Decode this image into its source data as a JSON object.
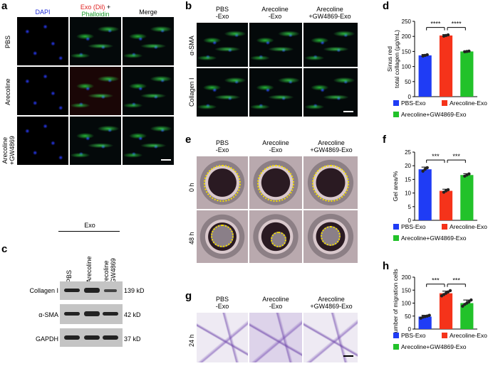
{
  "panels": {
    "a": "a",
    "b": "b",
    "c": "c",
    "d": "d",
    "e": "e",
    "f": "f",
    "g": "g",
    "h": "h"
  },
  "panel_a": {
    "col_dapi": "DAPI",
    "col_exo": "Exo (Dil)",
    "col_plus": " +",
    "col_phalloidin": "Phalloidin",
    "col_merge": "Merge",
    "rows": [
      "PBS",
      "Arecoline",
      "Arecoline\n+GW4869"
    ],
    "colors": {
      "dapi": "#1f2bd9",
      "exo": "#e0201f",
      "phalloidin": "#1b9e2c"
    }
  },
  "panel_b": {
    "cols": [
      "PBS\n-Exo",
      "Arecoline\n-Exo",
      "Arecoline\n+GW4869-Exo"
    ],
    "rows": [
      "α-SMA",
      "Collagen I"
    ]
  },
  "panel_c": {
    "header": "Exo",
    "lanes": [
      "PBS",
      "Arecoline",
      "Arecoline\n+GW4869"
    ],
    "blots": [
      {
        "name": "Collagen I",
        "size": "139 kD"
      },
      {
        "name": "α-SMA",
        "size": "42 kD"
      },
      {
        "name": "GAPDH",
        "size": "37 kD"
      }
    ]
  },
  "panel_e": {
    "cols": [
      "PBS\n-Exo",
      "Arecoline\n-Exo",
      "Arecoline\n+GW4869-Exo"
    ],
    "rows": [
      "0 h",
      "48 h"
    ]
  },
  "panel_g": {
    "cols": [
      "PBS\n-Exo",
      "Arecoline\n-Exo",
      "Arecoline\n+GW4869-Exo"
    ],
    "rows": [
      "24 h"
    ]
  },
  "chart_data": [
    {
      "id": "d",
      "type": "bar",
      "categories": [
        "PBS-Exo",
        "Arecoline-Exo",
        "Arecoline+GW4869-Exo"
      ],
      "values": [
        137,
        203,
        150
      ],
      "errors": [
        3,
        3,
        2
      ],
      "points": [
        [
          135,
          137,
          139
        ],
        [
          201,
          203,
          205
        ],
        [
          149,
          150,
          151
        ]
      ],
      "colors": [
        "#1f3cf5",
        "#f5331a",
        "#22c22a"
      ],
      "ylabel_lines": [
        "Sinus red",
        "total collagen (μg/mL)"
      ],
      "ylim": [
        0,
        250
      ],
      "yticks": [
        0,
        50,
        100,
        150,
        200,
        250
      ],
      "significance": [
        {
          "from": 0,
          "to": 1,
          "label": "****"
        },
        {
          "from": 1,
          "to": 2,
          "label": "****"
        }
      ],
      "legend": [
        "PBS-Exo",
        "Arecoline-Exo",
        "Arecoline+GW4869-Exo"
      ]
    },
    {
      "id": "f",
      "type": "bar",
      "categories": [
        "PBS-Exo",
        "Arecoline-Exo",
        "Arecoline+GW4869-Exo"
      ],
      "values": [
        18.7,
        10.8,
        16.6
      ],
      "errors": [
        0.8,
        0.6,
        0.5
      ],
      "points": [
        [
          18.0,
          18.7,
          19.3
        ],
        [
          10.3,
          10.8,
          11.2
        ],
        [
          16.2,
          16.6,
          17.0
        ]
      ],
      "colors": [
        "#1f3cf5",
        "#f5331a",
        "#22c22a"
      ],
      "ylabel_lines": [
        "Gel area/%"
      ],
      "ylim": [
        0,
        25
      ],
      "yticks": [
        0,
        5,
        10,
        15,
        20,
        25
      ],
      "significance": [
        {
          "from": 0,
          "to": 1,
          "label": "***"
        },
        {
          "from": 1,
          "to": 2,
          "label": "***"
        }
      ],
      "legend": [
        "PBS-Exo",
        "Arecoline-Exo",
        "Arecoline+GW4869-Exo"
      ]
    },
    {
      "id": "h",
      "type": "bar",
      "categories": [
        "PBS-Exo",
        "Arecoline-Exo",
        "Arecoline+GW4869-Exo"
      ],
      "values": [
        48,
        138,
        100
      ],
      "errors": [
        5,
        8,
        12
      ],
      "points": [
        [
          42,
          46,
          48,
          50,
          53
        ],
        [
          128,
          133,
          138,
          143,
          148
        ],
        [
          88,
          95,
          100,
          105,
          112
        ]
      ],
      "colors": [
        "#1f3cf5",
        "#f5331a",
        "#22c22a"
      ],
      "ylabel_lines": [
        "Number of migration cells"
      ],
      "ylim": [
        0,
        200
      ],
      "yticks": [
        0,
        50,
        100,
        150,
        200
      ],
      "significance": [
        {
          "from": 0,
          "to": 1,
          "label": "***"
        },
        {
          "from": 1,
          "to": 2,
          "label": "***"
        }
      ],
      "legend": [
        "PBS-Exo",
        "Arecoline-Exo",
        "Arecoline+GW4869-Exo"
      ]
    }
  ]
}
